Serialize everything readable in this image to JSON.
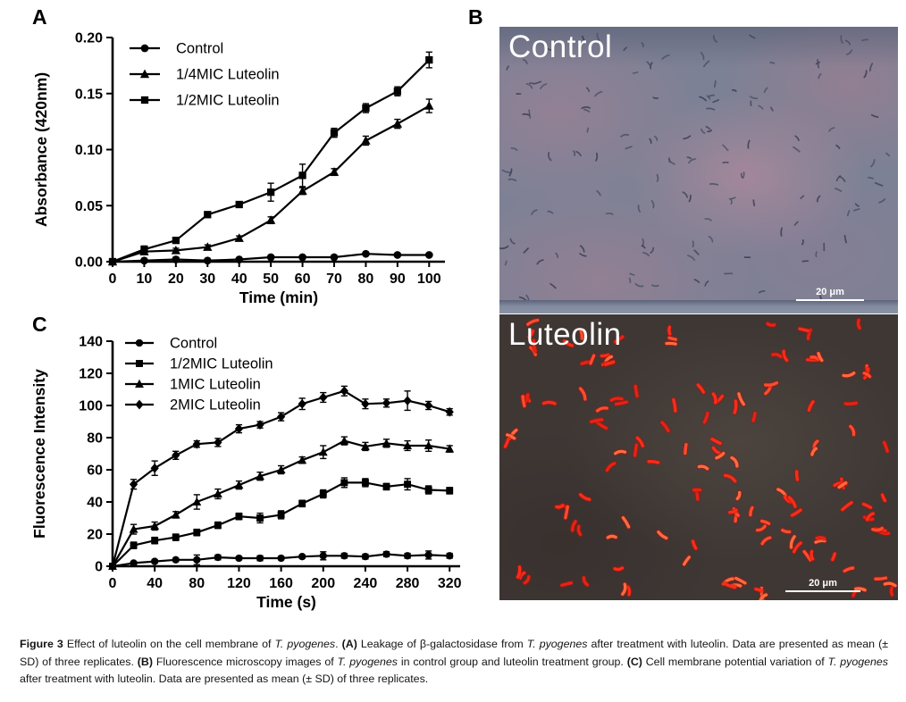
{
  "figure": {
    "panel_a_label": "A",
    "panel_b_label": "B",
    "panel_c_label": "C"
  },
  "micrographs": {
    "control": {
      "label": "Control",
      "scalebar": "20 μm"
    },
    "luteolin": {
      "label": "Luteolin",
      "scalebar": "20 μm"
    },
    "colors": {
      "control_background": "#7d8195",
      "control_bacteria": "#3d4458",
      "luteolin_background": "#3e3734",
      "luteolin_bacteria": "#fb2b19",
      "label_text": "#ffffff"
    }
  },
  "caption": {
    "segments": [
      {
        "text": "Figure 3",
        "style": "bold"
      },
      {
        "text": " Effect of luteolin on the cell membrane of ",
        "style": "normal"
      },
      {
        "text": "T. pyogenes",
        "style": "italic"
      },
      {
        "text": ". ",
        "style": "normal"
      },
      {
        "text": "(A)",
        "style": "bold"
      },
      {
        "text": " Leakage of β-galactosidase from ",
        "style": "normal"
      },
      {
        "text": "T. pyogenes",
        "style": "italic"
      },
      {
        "text": " after treatment with luteolin. Data are presented as mean (± SD) of three replicates. ",
        "style": "normal"
      },
      {
        "text": "(B)",
        "style": "bold"
      },
      {
        "text": " Fluorescence microscopy images of ",
        "style": "normal"
      },
      {
        "text": "T. pyogenes",
        "style": "italic"
      },
      {
        "text": " in control group and luteolin treatment group. ",
        "style": "normal"
      },
      {
        "text": "(C)",
        "style": "bold"
      },
      {
        "text": " Cell membrane potential variation of ",
        "style": "normal"
      },
      {
        "text": "T. pyogenes",
        "style": "italic"
      },
      {
        "text": " after treatment with luteolin. Data are presented as mean (± SD) of three replicates.",
        "style": "normal"
      }
    ]
  },
  "chart_data": [
    {
      "panel": "A",
      "type": "line",
      "title": "",
      "xlabel": "Time (min)",
      "ylabel": "Absorbance (420nm)",
      "xlim": [
        0,
        105
      ],
      "ylim": [
        0,
        0.2
      ],
      "xticks": [
        0,
        10,
        20,
        30,
        40,
        50,
        60,
        70,
        80,
        90,
        100
      ],
      "yticks": [
        0.0,
        0.05,
        0.1,
        0.15,
        0.2
      ],
      "ytick_decimals": 2,
      "grid": false,
      "legend_position": "top-left-inside",
      "line_color": "#000000",
      "x": [
        0,
        10,
        20,
        30,
        40,
        50,
        60,
        70,
        80,
        90,
        100
      ],
      "series": [
        {
          "name": "Control",
          "marker": "circle",
          "values": [
            0,
            0.001,
            0.002,
            0.001,
            0.002,
            0.004,
            0.004,
            0.004,
            0.007,
            0.006,
            0.006
          ],
          "errors": [
            0,
            0.001,
            0.002,
            0.001,
            0.001,
            0.001,
            0.001,
            0.001,
            0.001,
            0.001,
            0.001
          ]
        },
        {
          "name": "1/4MIC Luteolin",
          "marker": "triangle",
          "values": [
            0,
            0.009,
            0.01,
            0.013,
            0.021,
            0.037,
            0.063,
            0.08,
            0.108,
            0.123,
            0.139
          ],
          "errors": [
            0,
            0.002,
            0.002,
            0.002,
            0.002,
            0.003,
            0.003,
            0.003,
            0.004,
            0.004,
            0.006
          ]
        },
        {
          "name": "1/2MIC Luteolin",
          "marker": "square",
          "values": [
            0,
            0.011,
            0.019,
            0.042,
            0.051,
            0.062,
            0.077,
            0.115,
            0.137,
            0.152,
            0.18
          ],
          "errors": [
            0,
            0.003,
            0.002,
            0.002,
            0.002,
            0.008,
            0.01,
            0.004,
            0.004,
            0.004,
            0.007
          ]
        }
      ]
    },
    {
      "panel": "C",
      "type": "line",
      "title": "",
      "xlabel": "Time (s)",
      "ylabel": "Fluorescence Intensity",
      "xlim": [
        0,
        330
      ],
      "ylim": [
        0,
        140
      ],
      "xticks": [
        0,
        40,
        80,
        120,
        160,
        200,
        240,
        280,
        320
      ],
      "yticks": [
        0,
        20,
        40,
        60,
        80,
        100,
        120,
        140
      ],
      "ytick_decimals": 0,
      "grid": false,
      "legend_position": "top-left-inside",
      "line_color": "#000000",
      "x": [
        0,
        20,
        40,
        60,
        80,
        100,
        120,
        140,
        160,
        180,
        200,
        220,
        240,
        260,
        280,
        300,
        320
      ],
      "series": [
        {
          "name": "Control",
          "marker": "circle",
          "values": [
            0,
            2,
            3,
            4,
            4,
            5.5,
            5,
            5,
            5,
            6,
            6.5,
            6.5,
            6,
            7.5,
            6.5,
            7,
            6.5
          ],
          "errors": [
            0,
            1,
            1,
            1,
            3,
            1.5,
            1,
            1.5,
            1,
            1,
            2.5,
            1.5,
            1.5,
            1.5,
            1.5,
            2.5,
            1.5
          ]
        },
        {
          "name": "1/2MIC Luteolin",
          "marker": "square",
          "values": [
            0,
            13,
            16,
            18,
            21,
            25.5,
            31,
            30,
            32,
            39,
            45,
            52,
            52,
            49.5,
            51,
            47.5,
            47
          ],
          "errors": [
            0,
            2,
            2,
            2,
            2,
            2,
            2,
            3,
            2.5,
            2,
            2.5,
            3,
            2.5,
            2,
            3.5,
            2.5,
            2
          ]
        },
        {
          "name": "1MIC Luteolin",
          "marker": "triangle",
          "values": [
            0,
            23,
            25,
            32,
            40,
            45,
            50.5,
            56,
            60,
            66,
            71,
            78,
            74.5,
            76.5,
            75,
            75,
            73
          ],
          "errors": [
            0,
            3,
            2.5,
            2,
            4.5,
            3,
            2.5,
            2.5,
            2.5,
            2,
            4,
            2.5,
            2.5,
            2.5,
            3,
            3.5,
            2
          ]
        },
        {
          "name": "2MIC Luteolin",
          "marker": "diamond",
          "values": [
            0,
            51,
            61,
            69,
            76,
            77,
            85.5,
            88,
            93,
            101,
            105,
            109,
            101,
            101.5,
            103,
            100,
            96
          ],
          "errors": [
            0,
            3,
            4.5,
            2.5,
            2,
            2.5,
            2.5,
            2,
            2.5,
            3.5,
            3,
            3,
            3,
            2.5,
            6,
            2.5,
            2
          ]
        }
      ]
    }
  ]
}
